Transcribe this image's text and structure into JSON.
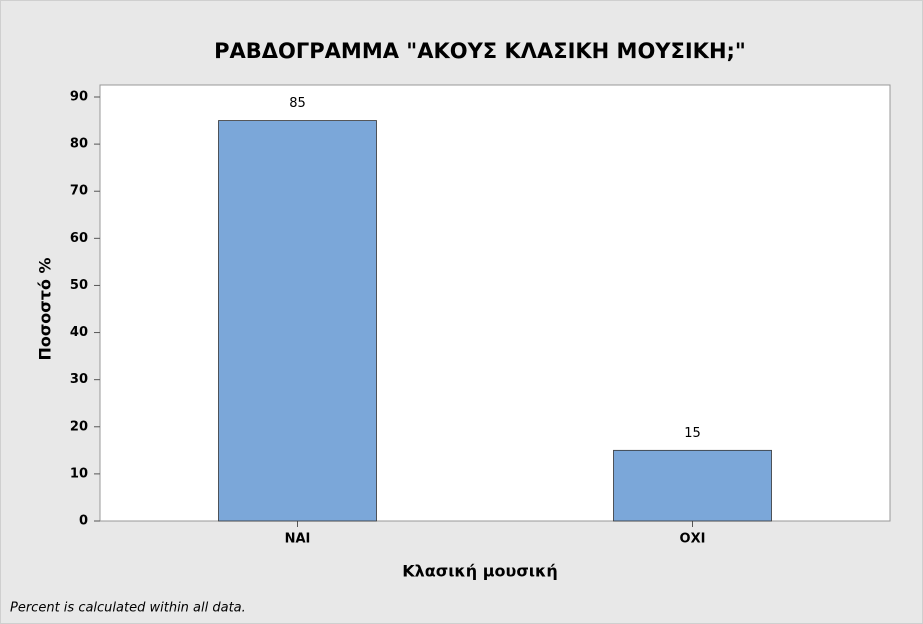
{
  "chart_data": {
    "type": "bar",
    "title": "ΡΑΒΔΟΓΡΑΜΜΑ \"ΑΚΟΥΣ ΚΛΑΣΙΚΗ ΜΟΥΣΙΚΗ;\"",
    "x_label": "Κλασική μουσική",
    "y_label": "Ποσοστό %",
    "footnote": "Percent is calculated within all data.",
    "categories": [
      "ΝΑΙ",
      "ΟΧΙ"
    ],
    "values": [
      85,
      15
    ],
    "color": "#7ba7d9",
    "ylim": [
      0,
      90
    ],
    "yticks": [
      0,
      10,
      20,
      30,
      40,
      50,
      60,
      70,
      80,
      90
    ],
    "grid": false
  }
}
